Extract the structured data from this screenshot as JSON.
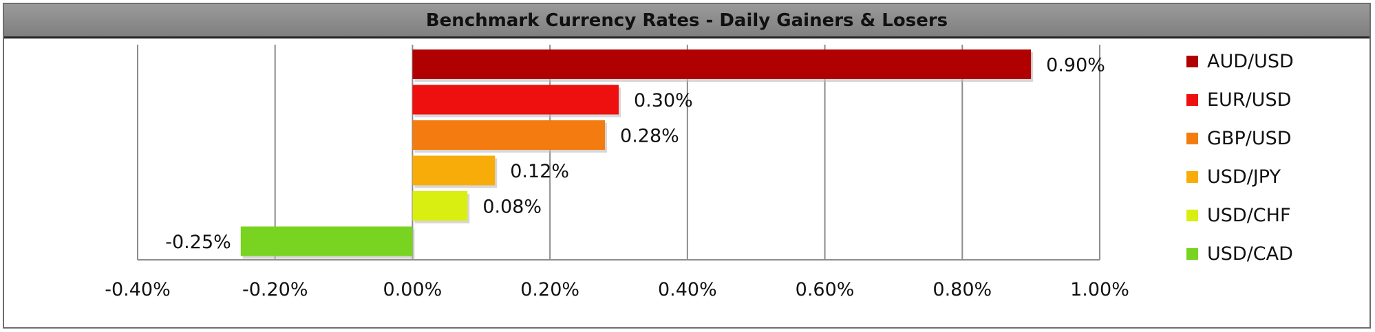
{
  "chart_data": {
    "type": "bar",
    "orientation": "horizontal",
    "title": "Benchmark Currency Rates - Daily Gainers & Losers",
    "categories": [
      "AUD/USD",
      "EUR/USD",
      "GBP/USD",
      "USD/JPY",
      "USD/CHF",
      "USD/CAD"
    ],
    "values": [
      0.9,
      0.3,
      0.28,
      0.12,
      0.08,
      -0.25
    ],
    "value_labels": [
      "0.90%",
      "0.30%",
      "0.28%",
      "0.12%",
      "0.08%",
      "-0.25%"
    ],
    "colors": [
      "#b00000",
      "#ee0f0f",
      "#f47b10",
      "#f7ac0a",
      "#d9ef12",
      "#79d321"
    ],
    "xlim": [
      -0.4,
      1.0
    ],
    "x_ticks": [
      -0.4,
      -0.2,
      0.0,
      0.2,
      0.4,
      0.6,
      0.8,
      1.0
    ],
    "x_tick_labels": [
      "-0.40%",
      "-0.20%",
      "0.00%",
      "0.20%",
      "0.40%",
      "0.60%",
      "0.80%",
      "1.00%"
    ],
    "grid": "vertical",
    "legend_position": "right"
  }
}
